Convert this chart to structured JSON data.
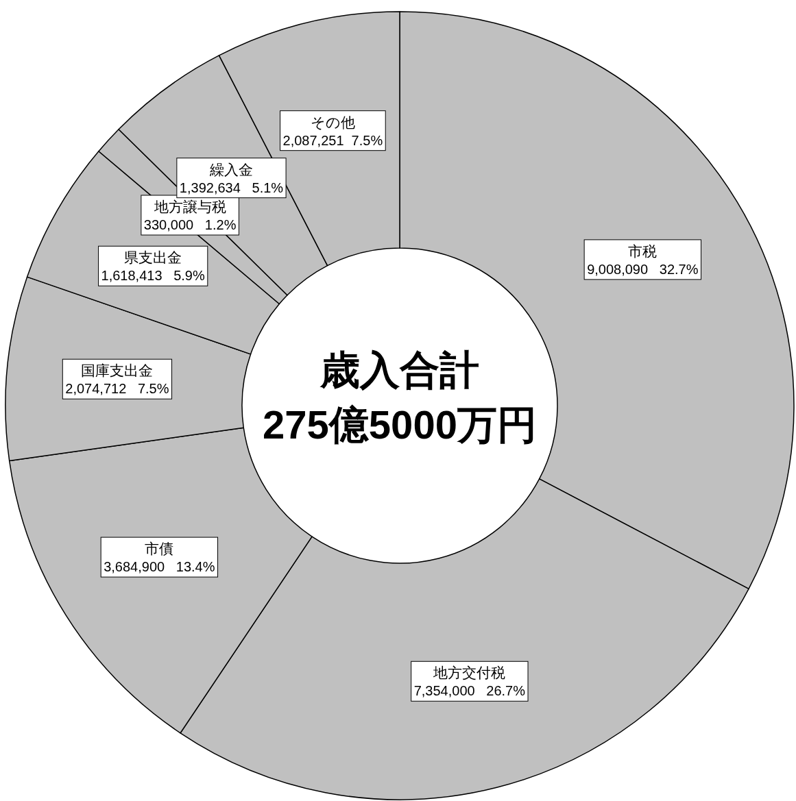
{
  "chart_data": {
    "type": "donut",
    "categories": [
      "市税",
      "地方交付税",
      "市債",
      "国庫支出金",
      "県支出金",
      "地方譲与税",
      "繰入金",
      "その他"
    ],
    "values": [
      9008090,
      7354000,
      3684900,
      2074712,
      1618413,
      330000,
      1392634,
      2087251
    ],
    "value_labels": [
      "9,008,090   32.7%",
      "7,354,000   26.7%",
      "3,684,900   13.4%",
      "2,074,712   7.5%",
      "1,618,413   5.9%",
      "330,000   1.2%",
      "1,392,634   5.1%",
      "2,087,251  7.5%"
    ],
    "colors": [
      "#c0c0c0",
      "#c0c0c0",
      "#c0c0c0",
      "#c0c0c0",
      "#c0c0c0",
      "#c0c0c0",
      "#c0c0c0",
      "#c0c0c0"
    ],
    "annotations": [
      "歳入合計",
      "275億5000万円"
    ],
    "legend": false
  }
}
